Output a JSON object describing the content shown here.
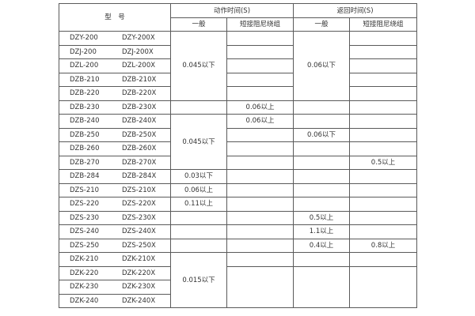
{
  "header": {
    "model": "型　号",
    "action_time": "动作时间(S)",
    "return_time": "返回时间(S)",
    "general": "一般",
    "short_winding": "短接阻尼绕组"
  },
  "rows": [
    {
      "a": "DZY-200",
      "b": "DZY-200X",
      "ag": "0.045以下",
      "as": "",
      "rg": "0.06以下",
      "rs": ""
    },
    {
      "a": "DZJ-200",
      "b": "DZJ-200X",
      "ag": null,
      "as": "",
      "rg": null,
      "rs": ""
    },
    {
      "a": "DZL-200",
      "b": "DZL-200X",
      "ag": null,
      "as": "",
      "rg": null,
      "rs": ""
    },
    {
      "a": "DZB-210",
      "b": "DZB-210X",
      "ag": null,
      "as": "",
      "rg": null,
      "rs": ""
    },
    {
      "a": "DZB-220",
      "b": "DZB-220X",
      "ag": null,
      "as": "",
      "rg": null,
      "rs": ""
    },
    {
      "a": "DZB-230",
      "b": "DZB-230X",
      "ag": "",
      "as": "0.06以上",
      "rg": "",
      "rs": ""
    },
    {
      "a": "DZB-240",
      "b": "DZB-240X",
      "ag": "0.045以下",
      "as": "0.06以上",
      "rg": "",
      "rs": ""
    },
    {
      "a": "DZB-250",
      "b": "DZB-250X",
      "ag": null,
      "as": "",
      "rg": "0.06以下",
      "rs": ""
    },
    {
      "a": "DZB-260",
      "b": "DZB-260X",
      "ag": null,
      "as": "",
      "rg": "",
      "rs": ""
    },
    {
      "a": "DZB-270",
      "b": "DZB-270X",
      "ag": null,
      "as": "",
      "rg": "",
      "rs": "0.5以上"
    },
    {
      "a": "DZB-284",
      "b": "DZB-284X",
      "ag": "0.03以下",
      "as": "",
      "rg": "",
      "rs": ""
    },
    {
      "a": "DZS-210",
      "b": "DZS-210X",
      "ag": "0.06以上",
      "as": "",
      "rg": "",
      "rs": ""
    },
    {
      "a": "DZS-220",
      "b": "DZS-220X",
      "ag": "0.11以上",
      "as": "",
      "rg": "",
      "rs": ""
    },
    {
      "a": "DZS-230",
      "b": "DZS-230X",
      "ag": "",
      "as": "",
      "rg": "0.5以上",
      "rs": ""
    },
    {
      "a": "DZS-240",
      "b": "DZS-240X",
      "ag": "",
      "as": "",
      "rg": "1.1以上",
      "rs": ""
    },
    {
      "a": "DZS-250",
      "b": "DZS-250X",
      "ag": "",
      "as": "",
      "rg": "0.4以上",
      "rs": "0.8以上"
    },
    {
      "a": "DZK-210",
      "b": "DZK-210X",
      "ag": "0.015以下",
      "as": "",
      "rg": "",
      "rs": ""
    },
    {
      "a": "DZK-220",
      "b": "DZK-220X",
      "ag": null,
      "as": "",
      "rg": "",
      "rs": ""
    },
    {
      "a": "DZK-230",
      "b": "DZK-230X",
      "ag": null,
      "as": null,
      "rg": null,
      "rs": null
    },
    {
      "a": "DZK-240",
      "b": "DZK-240X",
      "ag": null,
      "as": null,
      "rg": null,
      "rs": null
    }
  ]
}
